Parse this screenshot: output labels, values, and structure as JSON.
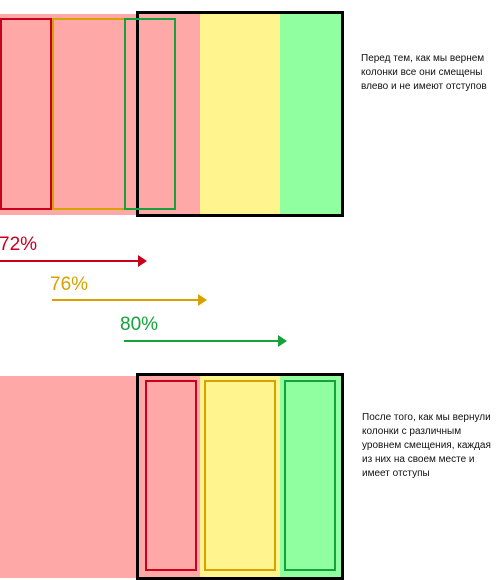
{
  "notes": {
    "before": "Перед тем, как мы вернем колонки все они смещены влево и не имеют отступов",
    "after": "После того, как мы вернули колонки с различным уровнем смещения, каждая из них на своем месте и имеет отступы"
  },
  "offsets": [
    {
      "label": "72%",
      "color": "#c8001e"
    },
    {
      "label": "76%",
      "color": "#d7a100"
    },
    {
      "label": "80%",
      "color": "#16a23a"
    }
  ],
  "colors": {
    "col1_fill": "#ffa8a8",
    "col2_fill": "#fff48e",
    "col3_fill": "#8fff9f",
    "col1_border": "#c8001e",
    "col2_border": "#d7a100",
    "col3_border": "#16a23a",
    "container_frame": "#000000"
  }
}
